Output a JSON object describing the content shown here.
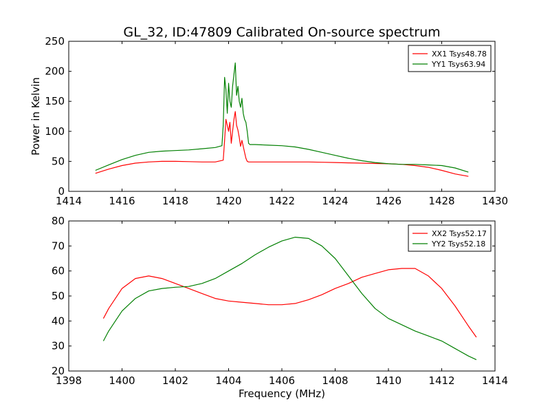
{
  "figure": {
    "title": "GL_32, ID:47809 Calibrated On-source spectrum",
    "xlabel": "Frequency (MHz)"
  },
  "chart_data": [
    {
      "type": "line",
      "title": "GL_32, ID:47809 Calibrated On-source spectrum",
      "ylabel": "Power in Kelvin",
      "xlabel": "",
      "xlim": [
        1414,
        1430
      ],
      "ylim": [
        0,
        250
      ],
      "xticks": [
        "1414",
        "1416",
        "1418",
        "1420",
        "1422",
        "1424",
        "1426",
        "1428",
        "1430"
      ],
      "yticks": [
        "0",
        "50",
        "100",
        "150",
        "200",
        "250"
      ],
      "grid": false,
      "legend_position": "top-right",
      "series": [
        {
          "name": "XX1 Tsys48.78",
          "color": "#ff0000",
          "x": [
            1415.0,
            1415.5,
            1416.0,
            1416.5,
            1417.0,
            1417.5,
            1418.0,
            1418.5,
            1419.0,
            1419.5,
            1419.8,
            1419.85,
            1419.9,
            1419.95,
            1420.0,
            1420.05,
            1420.1,
            1420.15,
            1420.2,
            1420.25,
            1420.3,
            1420.35,
            1420.4,
            1420.45,
            1420.5,
            1420.55,
            1420.6,
            1420.65,
            1420.7,
            1420.75,
            1420.8,
            1421.0,
            1421.5,
            1422.0,
            1422.5,
            1423.0,
            1423.5,
            1424.0,
            1424.5,
            1425.0,
            1425.5,
            1426.0,
            1426.5,
            1427.0,
            1427.5,
            1428.0,
            1428.5,
            1429.0
          ],
          "y": [
            30,
            37,
            43,
            47,
            49,
            50,
            50,
            49.5,
            49,
            49,
            52,
            85,
            120,
            110,
            100,
            115,
            80,
            100,
            120,
            133,
            110,
            102,
            90,
            75,
            85,
            75,
            65,
            55,
            50,
            49,
            49,
            49,
            49,
            49,
            49,
            49,
            48.5,
            48,
            47.5,
            47,
            46.5,
            46,
            45,
            43,
            40,
            35,
            29,
            25
          ]
        },
        {
          "name": "YY1 Tsys63.94",
          "color": "#007f00",
          "x": [
            1415.0,
            1415.5,
            1416.0,
            1416.5,
            1417.0,
            1417.5,
            1418.0,
            1418.5,
            1419.0,
            1419.5,
            1419.75,
            1419.8,
            1419.85,
            1419.9,
            1419.95,
            1420.0,
            1420.05,
            1420.1,
            1420.15,
            1420.2,
            1420.25,
            1420.3,
            1420.35,
            1420.4,
            1420.45,
            1420.5,
            1420.55,
            1420.6,
            1420.65,
            1420.7,
            1420.75,
            1420.8,
            1421.0,
            1421.5,
            1422.0,
            1422.5,
            1423.0,
            1423.5,
            1424.0,
            1424.5,
            1425.0,
            1425.5,
            1426.0,
            1426.5,
            1427.0,
            1427.5,
            1428.0,
            1428.5,
            1429.0
          ],
          "y": [
            35,
            44,
            53,
            60,
            65,
            67,
            68,
            69,
            71,
            73,
            76,
            110,
            190,
            170,
            130,
            180,
            150,
            140,
            175,
            195,
            214,
            160,
            175,
            150,
            140,
            155,
            130,
            120,
            115,
            100,
            80,
            78,
            78,
            77,
            76,
            74,
            70,
            65,
            60,
            55,
            51,
            48,
            46,
            45,
            45,
            44,
            43,
            39,
            32
          ]
        }
      ]
    },
    {
      "type": "line",
      "title": "",
      "ylabel": "",
      "xlabel": "Frequency (MHz)",
      "xlim": [
        1398,
        1414
      ],
      "ylim": [
        20,
        80
      ],
      "xticks": [
        "1398",
        "1400",
        "1402",
        "1404",
        "1406",
        "1408",
        "1410",
        "1412",
        "1414"
      ],
      "yticks": [
        "20",
        "30",
        "40",
        "50",
        "60",
        "70",
        "80"
      ],
      "grid": false,
      "legend_position": "top-right",
      "series": [
        {
          "name": "XX2 Tsys52.17",
          "color": "#ff0000",
          "x": [
            1399.3,
            1399.5,
            1400.0,
            1400.5,
            1401.0,
            1401.5,
            1402.0,
            1402.5,
            1403.0,
            1403.5,
            1404.0,
            1404.5,
            1405.0,
            1405.5,
            1406.0,
            1406.5,
            1407.0,
            1407.5,
            1408.0,
            1408.5,
            1409.0,
            1409.5,
            1410.0,
            1410.5,
            1411.0,
            1411.5,
            1412.0,
            1412.5,
            1413.0,
            1413.3
          ],
          "y": [
            41,
            45,
            53,
            57,
            58,
            57,
            55,
            53,
            51,
            49,
            48,
            47.5,
            47,
            46.5,
            46.5,
            47,
            48.5,
            50.5,
            53,
            55,
            57.5,
            59,
            60.5,
            61,
            61,
            58,
            53,
            46,
            38,
            33.5
          ]
        },
        {
          "name": "YY2 Tsys52.18",
          "color": "#007f00",
          "x": [
            1399.3,
            1399.5,
            1400.0,
            1400.5,
            1401.0,
            1401.5,
            1402.0,
            1402.5,
            1403.0,
            1403.5,
            1404.0,
            1404.5,
            1405.0,
            1405.5,
            1406.0,
            1406.5,
            1407.0,
            1407.5,
            1408.0,
            1408.5,
            1409.0,
            1409.5,
            1410.0,
            1410.5,
            1411.0,
            1411.5,
            1412.0,
            1412.5,
            1413.0,
            1413.3
          ],
          "y": [
            32,
            36,
            44,
            49,
            52,
            53,
            53.5,
            53.8,
            55,
            57,
            60,
            63,
            66.5,
            69.5,
            72,
            73.5,
            73,
            70,
            65,
            58,
            51,
            45,
            41,
            38.5,
            36,
            34,
            32,
            29,
            26,
            24.5
          ]
        }
      ]
    }
  ]
}
